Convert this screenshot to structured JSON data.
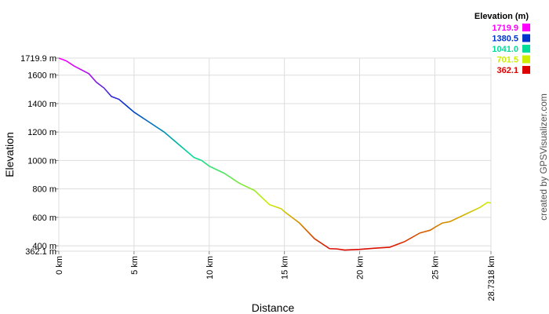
{
  "chart_data": {
    "type": "line",
    "x_label": "Distance",
    "y_label": "Elevation",
    "credit": "created by GPSVisualizer.com",
    "legend": {
      "title": "Elevation (m)",
      "items": [
        {
          "value": 1719.9,
          "label": "1719.9",
          "color": "#ff00ff"
        },
        {
          "value": 1380.5,
          "label": "1380.5",
          "color": "#0033cc"
        },
        {
          "value": 1041,
          "label": "1041.0",
          "color": "#00dd99"
        },
        {
          "value": 701.5,
          "label": "701.5",
          "color": "#ccee00"
        },
        {
          "value": 362.1,
          "label": "362.1",
          "color": "#dd0000"
        }
      ]
    },
    "grid": true,
    "x": [
      0,
      0.5,
      1,
      2,
      2.5,
      3,
      3.5,
      4,
      5,
      6,
      7,
      8,
      9,
      9.5,
      10,
      11,
      12,
      13,
      14,
      14.8,
      15,
      16,
      17,
      18,
      18.5,
      19,
      20,
      21,
      22,
      23,
      24,
      24.7,
      25,
      25.5,
      26,
      27,
      28,
      28.5,
      28.7318
    ],
    "series": [
      {
        "name": "Elevation",
        "values": [
          1720,
          1700,
          1665,
          1610,
          1550,
          1510,
          1450,
          1430,
          1340,
          1270,
          1200,
          1110,
          1020,
          1000,
          960,
          910,
          840,
          790,
          690,
          660,
          640,
          560,
          450,
          380,
          378,
          370,
          375,
          383,
          390,
          430,
          490,
          510,
          530,
          560,
          570,
          620,
          670,
          705,
          701.5
        ]
      }
    ],
    "xlim": [
      0,
      28.7318
    ],
    "xticks": [
      {
        "value": 0,
        "label": "0 km"
      },
      {
        "value": 5,
        "label": "5 km"
      },
      {
        "value": 10,
        "label": "10 km"
      },
      {
        "value": 15,
        "label": "15 km"
      },
      {
        "value": 20,
        "label": "20 km"
      },
      {
        "value": 25,
        "label": "25 km"
      },
      {
        "value": 28.7318,
        "label": "28.7318 km"
      }
    ],
    "ylim": [
      362.1,
      1719.9
    ],
    "yticks": [
      {
        "value": 362.1,
        "label": "362.1 m"
      },
      {
        "value": 400,
        "label": "400 m"
      },
      {
        "value": 600,
        "label": "600 m"
      },
      {
        "value": 800,
        "label": "800 m"
      },
      {
        "value": 1000,
        "label": "1000 m"
      },
      {
        "value": 1200,
        "label": "1200 m"
      },
      {
        "value": 1400,
        "label": "1400 m"
      },
      {
        "value": 1600,
        "label": "1600 m"
      },
      {
        "value": 1719.9,
        "label": "1719.9 m"
      }
    ]
  }
}
